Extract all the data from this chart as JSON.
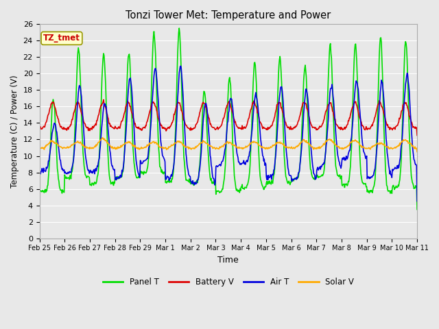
{
  "title": "Tonzi Tower Met: Temperature and Power",
  "xlabel": "Time",
  "ylabel": "Temperature (C) / Power (V)",
  "ylim": [
    0,
    26
  ],
  "yticks": [
    0,
    2,
    4,
    6,
    8,
    10,
    12,
    14,
    16,
    18,
    20,
    22,
    24,
    26
  ],
  "xtick_labels": [
    "Feb 25",
    "Feb 26",
    "Feb 27",
    "Feb 28",
    "Feb 29",
    "Mar 1",
    "Mar 2",
    "Mar 3",
    "Mar 4",
    "Mar 5",
    "Mar 6",
    "Mar 7",
    "Mar 8",
    "Mar 9",
    "Mar 10",
    "Mar 11"
  ],
  "annotation_text": "TZ_tmet",
  "annotation_color": "#cc0000",
  "annotation_bg": "#ffffcc",
  "annotation_edge": "#999900",
  "bg_color": "#e8e8e8",
  "plot_bg": "#e8e8e8",
  "grid_color": "#ffffff",
  "line_colors": {
    "panel_t": "#00dd00",
    "battery_v": "#dd0000",
    "air_t": "#0000dd",
    "solar_v": "#ffaa00"
  },
  "line_width": 1.2,
  "legend_labels": [
    "Panel T",
    "Battery V",
    "Air T",
    "Solar V"
  ],
  "figsize": [
    6.4,
    4.8
  ],
  "dpi": 100
}
